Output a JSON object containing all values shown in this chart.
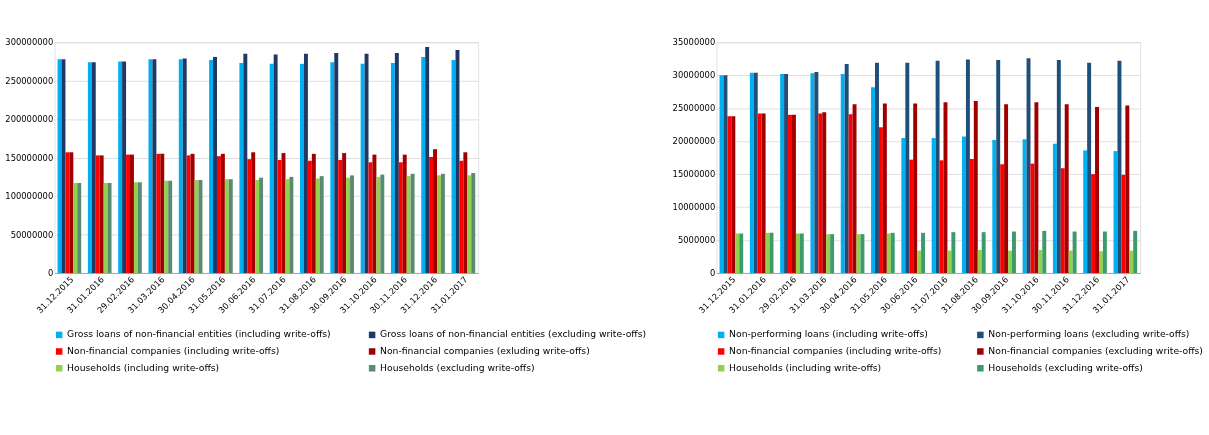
{
  "chart_data": [
    {
      "type": "bar",
      "categories": [
        "31.12.2015",
        "31.01.2016",
        "29.02.2016",
        "31.03.2016",
        "30.04.2016",
        "31.05.2016",
        "30.06.2016",
        "31.07.2016",
        "31.08.2016",
        "30.09.2016",
        "31.10.2016",
        "30.11.2016",
        "31.12.2016",
        "31.01.2017"
      ],
      "series": [
        {
          "name": "Gross loans of non-financial entities  (including write-offs)",
          "color": "#00b0f0",
          "values": [
            278000000,
            274000000,
            275000000,
            278000000,
            278000000,
            277000000,
            273000000,
            272000000,
            272000000,
            274000000,
            272000000,
            273000000,
            281000000,
            277000000
          ]
        },
        {
          "name": "Gross loans of non-financial entities  (excluding write-offs)",
          "color": "#1f3864",
          "values": [
            278000000,
            274000000,
            275000000,
            278000000,
            279000000,
            281000000,
            285000000,
            284000000,
            285000000,
            286000000,
            285000000,
            286000000,
            294000000,
            290000000
          ]
        },
        {
          "name": "Non-financial companies (including write-offs)",
          "color": "#ff0000",
          "values": [
            157000000,
            153000000,
            154000000,
            155000000,
            153000000,
            152000000,
            148000000,
            147000000,
            146000000,
            147000000,
            144000000,
            144000000,
            151000000,
            146000000
          ]
        },
        {
          "name": "Non-financial companies (exluding write-offs)",
          "color": "#a00000",
          "values": [
            157000000,
            153000000,
            154000000,
            155000000,
            155000000,
            155000000,
            157000000,
            156000000,
            155000000,
            156000000,
            154000000,
            154000000,
            161000000,
            157000000
          ]
        },
        {
          "name": "Households (including write-offs)",
          "color": "#92d050",
          "values": [
            117000000,
            117000000,
            118000000,
            120000000,
            121000000,
            122000000,
            121000000,
            122000000,
            123000000,
            124000000,
            125000000,
            126000000,
            127000000,
            127000000
          ]
        },
        {
          "name": "Households (excluding write-offs)",
          "color": "#5b8a72",
          "values": [
            117000000,
            117000000,
            118000000,
            120000000,
            121000000,
            122000000,
            124000000,
            125000000,
            126000000,
            127000000,
            128000000,
            129000000,
            129000000,
            130000000
          ]
        }
      ],
      "ylim": [
        0,
        300000000
      ],
      "yticks": [
        0,
        50000000,
        100000000,
        150000000,
        200000000,
        250000000,
        300000000
      ],
      "grid": "y",
      "legend": "bottom"
    },
    {
      "type": "bar",
      "categories": [
        "31.12.2015",
        "31.01.2016",
        "29.02.2016",
        "31.03.2016",
        "30.04.2016",
        "31.05.2016",
        "30.06.2016",
        "31.07.2016",
        "31.08.2016",
        "30.09.2016",
        "31.10.2016",
        "30.11.2016",
        "31.12.2016",
        "31.01.2017"
      ],
      "series": [
        {
          "name": "Non-performing loans (including write-offs)",
          "color": "#00b0f0",
          "values": [
            30000000,
            30400000,
            30200000,
            30300000,
            30200000,
            28200000,
            20500000,
            20500000,
            20700000,
            20200000,
            20300000,
            19600000,
            18600000,
            18500000
          ]
        },
        {
          "name": "Non-performing loans (excluding write-offs)",
          "color": "#1f4e79",
          "values": [
            30000000,
            30400000,
            30200000,
            30500000,
            31700000,
            31900000,
            31900000,
            32200000,
            32400000,
            32300000,
            32600000,
            32300000,
            31900000,
            32200000
          ]
        },
        {
          "name": "Non-financial companies (including write-offs)",
          "color": "#ff0000",
          "values": [
            23800000,
            24200000,
            24000000,
            24200000,
            24100000,
            22100000,
            17200000,
            17100000,
            17300000,
            16500000,
            16600000,
            15900000,
            15000000,
            14900000
          ]
        },
        {
          "name": "Non-financial companies (excluding write-offs)",
          "color": "#a00000",
          "values": [
            23800000,
            24200000,
            24000000,
            24400000,
            25600000,
            25700000,
            25700000,
            25900000,
            26100000,
            25600000,
            25900000,
            25600000,
            25200000,
            25400000
          ]
        },
        {
          "name": "Households (including write-offs)",
          "color": "#92d050",
          "values": [
            6000000,
            6100000,
            6000000,
            5900000,
            5900000,
            6000000,
            3400000,
            3400000,
            3500000,
            3400000,
            3500000,
            3400000,
            3300000,
            3400000
          ]
        },
        {
          "name": "Households (excluding write-offs)",
          "color": "#3d9a6a",
          "values": [
            6000000,
            6100000,
            6000000,
            5900000,
            5900000,
            6100000,
            6100000,
            6200000,
            6200000,
            6300000,
            6400000,
            6300000,
            6300000,
            6400000
          ]
        }
      ],
      "ylim": [
        0,
        35000000
      ],
      "yticks": [
        0,
        5000000,
        10000000,
        15000000,
        20000000,
        25000000,
        30000000,
        35000000
      ],
      "grid": "y",
      "legend": "bottom"
    }
  ]
}
